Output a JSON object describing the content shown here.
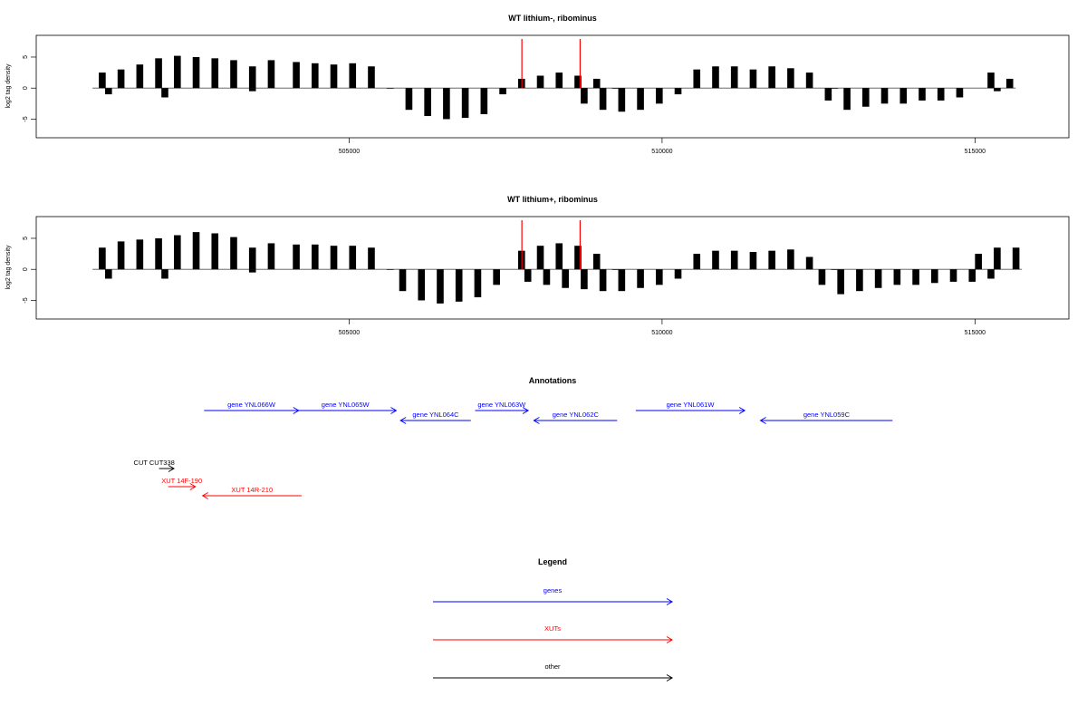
{
  "chart_data": [
    {
      "type": "bar",
      "title": "WT lithium-, ribominus",
      "ylabel": "log2 tag density",
      "xlim": [
        500000,
        516500
      ],
      "ylim": [
        -8,
        8.5
      ],
      "xticks": [
        505000,
        510000,
        515000
      ],
      "xtick_labels": [
        "505000",
        "510000",
        "515000"
      ],
      "yticks": [
        -5,
        0,
        5
      ],
      "ytick_labels": [
        "-5",
        "0",
        "5"
      ],
      "bar_color": "#000000",
      "marker_color": "#ff0000",
      "markers_x": [
        507760,
        508690
      ],
      "series": [
        {
          "strand": "plus",
          "x": [
            501000,
            501300,
            501600,
            501900,
            502200,
            502500,
            502800,
            503100,
            503400,
            503700,
            504100,
            504400,
            504700,
            505000,
            505300,
            505600,
            507700,
            508000,
            508300,
            508600,
            508900,
            509200,
            510500,
            510800,
            511100,
            511400,
            511700,
            512000,
            512300,
            512700,
            515200,
            515500
          ],
          "values": [
            2.5,
            3.0,
            3.8,
            4.8,
            5.2,
            5.0,
            4.8,
            4.5,
            3.5,
            4.5,
            4.2,
            4.0,
            3.8,
            4.0,
            3.5,
            0,
            1.5,
            2.0,
            2.5,
            2.0,
            1.5,
            0,
            3.0,
            3.5,
            3.5,
            3.0,
            3.5,
            3.2,
            2.5,
            0,
            2.5,
            1.5
          ]
        },
        {
          "strand": "minus",
          "x": [
            501100,
            502000,
            503400,
            505900,
            506200,
            506500,
            506800,
            507100,
            507400,
            508700,
            509000,
            509300,
            509600,
            509900,
            510200,
            512600,
            512900,
            513200,
            513500,
            513800,
            514100,
            514400,
            514700,
            515300
          ],
          "values": [
            -1.0,
            -1.5,
            -0.5,
            -3.5,
            -4.5,
            -5.0,
            -4.8,
            -4.2,
            -1.0,
            -2.5,
            -3.5,
            -3.8,
            -3.5,
            -2.5,
            -1.0,
            -2.0,
            -3.5,
            -3.0,
            -2.5,
            -2.5,
            -2.0,
            -2.0,
            -1.5,
            -0.5
          ]
        }
      ]
    },
    {
      "type": "bar",
      "title": "WT lithium+, ribominus",
      "ylabel": "log2 tag density",
      "xlim": [
        500000,
        516500
      ],
      "ylim": [
        -8,
        8.5
      ],
      "xticks": [
        505000,
        510000,
        515000
      ],
      "xtick_labels": [
        "505000",
        "510000",
        "515000"
      ],
      "yticks": [
        -5,
        0,
        5
      ],
      "ytick_labels": [
        "-5",
        "0",
        "5"
      ],
      "bar_color": "#000000",
      "marker_color": "#ff0000",
      "markers_x": [
        507760,
        508690
      ],
      "series": [
        {
          "strand": "plus",
          "x": [
            501000,
            501300,
            501600,
            501900,
            502200,
            502500,
            502800,
            503100,
            503400,
            503700,
            504100,
            504400,
            504700,
            505000,
            505300,
            505600,
            507700,
            508000,
            508300,
            508600,
            508900,
            509200,
            510500,
            510800,
            511100,
            511400,
            511700,
            512000,
            512300,
            512700,
            515000,
            515300,
            515600
          ],
          "values": [
            3.5,
            4.5,
            4.8,
            5.0,
            5.5,
            6.0,
            5.8,
            5.2,
            3.5,
            4.2,
            4.0,
            4.0,
            3.8,
            3.8,
            3.5,
            0,
            3.0,
            3.8,
            4.2,
            3.8,
            2.5,
            0,
            2.5,
            3.0,
            3.0,
            2.8,
            3.0,
            3.2,
            2.0,
            0,
            2.5,
            3.5,
            3.5
          ]
        },
        {
          "strand": "minus",
          "x": [
            501100,
            502000,
            503400,
            505800,
            506100,
            506400,
            506700,
            507000,
            507300,
            507800,
            508100,
            508400,
            508700,
            509000,
            509300,
            509600,
            509900,
            510200,
            512500,
            512800,
            513100,
            513400,
            513700,
            514000,
            514300,
            514600,
            514900,
            515200
          ],
          "values": [
            -1.5,
            -1.5,
            -0.5,
            -3.5,
            -5.0,
            -5.5,
            -5.2,
            -4.5,
            -2.5,
            -2.0,
            -2.5,
            -3.0,
            -3.2,
            -3.5,
            -3.5,
            -3.0,
            -2.5,
            -1.5,
            -2.5,
            -4.0,
            -3.5,
            -3.0,
            -2.5,
            -2.5,
            -2.2,
            -2.0,
            -2.0,
            -1.5
          ]
        }
      ]
    }
  ],
  "annotations": {
    "title": "Annotations",
    "features": [
      {
        "label": "gene YNL066W",
        "start": 500850,
        "end": 504150,
        "strand": "+",
        "row": 0,
        "kind": "gene",
        "color": "#0000ff"
      },
      {
        "label": "gene YNL065W",
        "start": 504000,
        "end": 507550,
        "strand": "+",
        "row": 0,
        "kind": "gene",
        "color": "#0000ff"
      },
      {
        "label": "gene YNL064C",
        "start": 507700,
        "end": 510150,
        "strand": "-",
        "row": 1,
        "kind": "gene",
        "color": "#0000ff"
      },
      {
        "label": "gene YNL063W",
        "start": 510300,
        "end": 512150,
        "strand": "+",
        "row": 0,
        "kind": "gene",
        "color": "#0000ff"
      },
      {
        "label": "gene YNL062C",
        "start": 512350,
        "end": 515250,
        "strand": "-",
        "row": 1,
        "kind": "gene",
        "color": "#0000ff"
      },
      {
        "label": "gene YNL061W",
        "start": 515900,
        "end": 519700,
        "strand": "+",
        "row": 0,
        "kind": "gene",
        "color": "#0000ff"
      },
      {
        "label": "gene YNL059C",
        "start": 520250,
        "end": 524850,
        "strand": "-",
        "row": 1,
        "kind": "gene",
        "color": "#0000ff"
      },
      {
        "label": "CUT CUT338",
        "start": 499280,
        "end": 499800,
        "strand": "+",
        "row": 2,
        "kind": "other",
        "color": "#000000"
      },
      {
        "label": "XUT 14F-190",
        "start": 499600,
        "end": 500550,
        "strand": "+",
        "row": 3,
        "kind": "XUT",
        "color": "#ff0000"
      },
      {
        "label": "XUT 14R-210",
        "start": 500800,
        "end": 504250,
        "strand": "-",
        "row": 4,
        "kind": "XUT",
        "color": "#ff0000"
      }
    ]
  },
  "legend": {
    "title": "Legend",
    "items": [
      {
        "label": "genes",
        "color": "#0000ff"
      },
      {
        "label": "XUTs",
        "color": "#ff0000"
      },
      {
        "label": "other",
        "color": "#000000"
      }
    ]
  }
}
